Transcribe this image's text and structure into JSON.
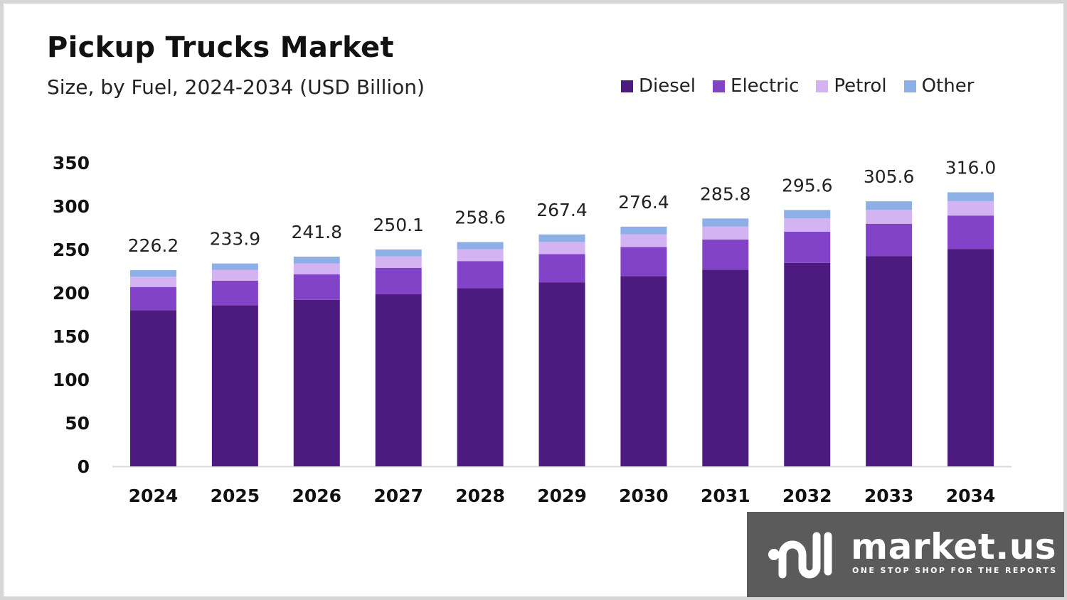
{
  "chart_data": {
    "type": "bar",
    "stacked": true,
    "title": "Pickup Trucks Market",
    "subtitle": "Size, by Fuel, 2024-2034 (USD Billion)",
    "categories": [
      "2024",
      "2025",
      "2026",
      "2027",
      "2028",
      "2029",
      "2030",
      "2031",
      "2032",
      "2033",
      "2034"
    ],
    "totals": [
      "226.2",
      "233.9",
      "241.8",
      "250.1",
      "258.6",
      "267.4",
      "276.4",
      "285.8",
      "295.6",
      "305.6",
      "316.0"
    ],
    "series": [
      {
        "name": "Diesel",
        "color": "#4d1a80",
        "values": [
          180.0,
          185.8,
          192.0,
          198.6,
          205.3,
          212.2,
          219.4,
          226.8,
          234.6,
          242.5,
          250.7
        ]
      },
      {
        "name": "Electric",
        "color": "#8243c9",
        "values": [
          26.8,
          28.3,
          29.3,
          30.3,
          31.4,
          32.5,
          33.6,
          34.8,
          36.0,
          37.2,
          38.5
        ]
      },
      {
        "name": "Petrol",
        "color": "#d3b3f2",
        "values": [
          12.0,
          12.3,
          12.7,
          13.1,
          13.6,
          14.0,
          14.5,
          15.0,
          15.5,
          16.0,
          16.6
        ]
      },
      {
        "name": "Other",
        "color": "#8eaee6",
        "values": [
          7.4,
          7.5,
          7.8,
          8.1,
          8.3,
          8.7,
          8.9,
          9.2,
          9.5,
          9.9,
          10.2
        ]
      }
    ],
    "ylim": [
      0,
      350
    ],
    "yticks": [
      0,
      50,
      100,
      150,
      200,
      250,
      300,
      350
    ],
    "xlabel": "",
    "ylabel": "",
    "legend": "top-right",
    "grid": false
  },
  "watermark": {
    "brand": "market.us",
    "tagline": "ONE STOP SHOP FOR THE REPORTS"
  }
}
